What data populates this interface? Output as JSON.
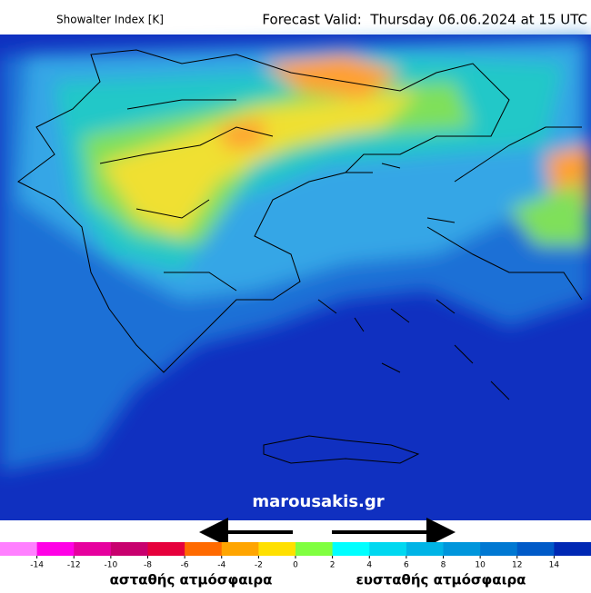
{
  "header": {
    "title": "Showalter Index [K]",
    "forecast": "Forecast Valid:  Thursday 06.06.2024 at 15 UTC"
  },
  "watermark": "marousakis.gr",
  "colorbar": {
    "colors": [
      "#ff80ff",
      "#ff00e6",
      "#e6009e",
      "#c8006e",
      "#e6003c",
      "#ff6a00",
      "#ffa500",
      "#ffe000",
      "#80ff40",
      "#00ffff",
      "#00d8f0",
      "#00b4e6",
      "#0096dc",
      "#0078d2",
      "#005ac8",
      "#0028b4"
    ],
    "ticks": [
      -14,
      -12,
      -10,
      -8,
      -6,
      -4,
      -2,
      0,
      2,
      4,
      6,
      8,
      10,
      12,
      14
    ]
  },
  "legend": {
    "unstable": "ασταθής ατμόσφαιρα",
    "stable": "ευσταθής ατμόσφαιρα"
  }
}
